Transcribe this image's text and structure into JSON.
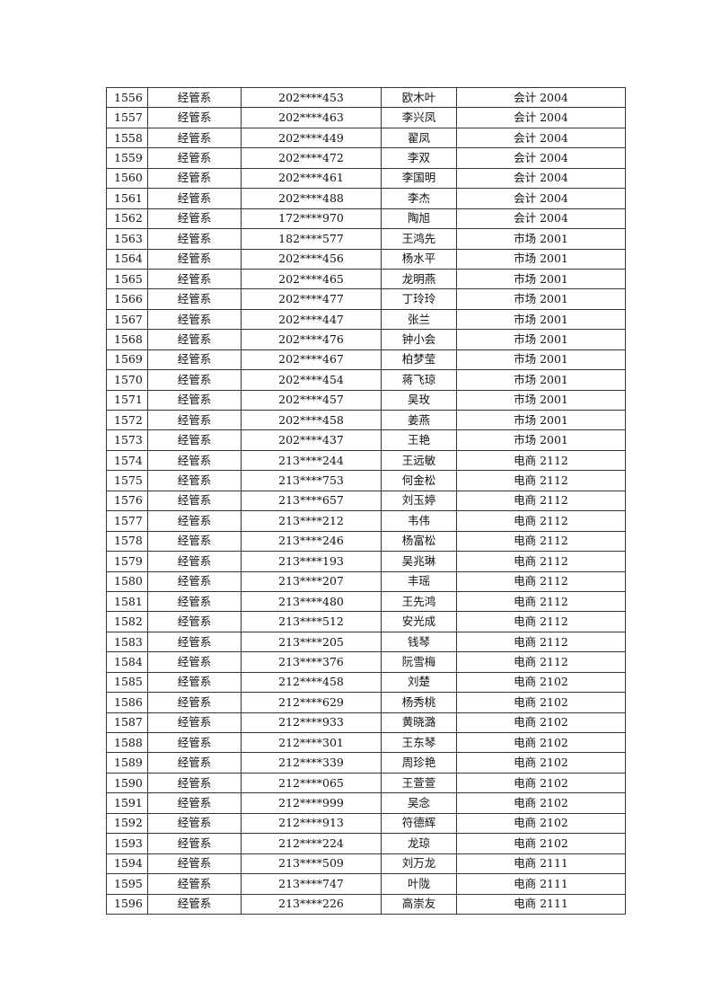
{
  "table": {
    "rows": [
      [
        "1556",
        "经管系",
        "202****453",
        "欧木叶",
        "会计 2004"
      ],
      [
        "1557",
        "经管系",
        "202****463",
        "李兴凤",
        "会计 2004"
      ],
      [
        "1558",
        "经管系",
        "202****449",
        "翟凤",
        "会计 2004"
      ],
      [
        "1559",
        "经管系",
        "202****472",
        "李双",
        "会计 2004"
      ],
      [
        "1560",
        "经管系",
        "202****461",
        "李国明",
        "会计 2004"
      ],
      [
        "1561",
        "经管系",
        "202****488",
        "李杰",
        "会计 2004"
      ],
      [
        "1562",
        "经管系",
        "172****970",
        "陶旭",
        "会计 2004"
      ],
      [
        "1563",
        "经管系",
        "182****577",
        "王鸿先",
        "市场 2001"
      ],
      [
        "1564",
        "经管系",
        "202****456",
        "杨水平",
        "市场 2001"
      ],
      [
        "1565",
        "经管系",
        "202****465",
        "龙明燕",
        "市场 2001"
      ],
      [
        "1566",
        "经管系",
        "202****477",
        "丁玲玲",
        "市场 2001"
      ],
      [
        "1567",
        "经管系",
        "202****447",
        "张兰",
        "市场 2001"
      ],
      [
        "1568",
        "经管系",
        "202****476",
        "钟小会",
        "市场 2001"
      ],
      [
        "1569",
        "经管系",
        "202****467",
        "柏梦莹",
        "市场 2001"
      ],
      [
        "1570",
        "经管系",
        "202****454",
        "蒋飞琼",
        "市场 2001"
      ],
      [
        "1571",
        "经管系",
        "202****457",
        "吴玫",
        "市场 2001"
      ],
      [
        "1572",
        "经管系",
        "202****458",
        "姜燕",
        "市场 2001"
      ],
      [
        "1573",
        "经管系",
        "202****437",
        "王艳",
        "市场 2001"
      ],
      [
        "1574",
        "经管系",
        "213****244",
        "王远敏",
        "电商 2112"
      ],
      [
        "1575",
        "经管系",
        "213****753",
        "何金松",
        "电商 2112"
      ],
      [
        "1576",
        "经管系",
        "213****657",
        "刘玉婷",
        "电商 2112"
      ],
      [
        "1577",
        "经管系",
        "213****212",
        "韦伟",
        "电商 2112"
      ],
      [
        "1578",
        "经管系",
        "213****246",
        "杨富松",
        "电商 2112"
      ],
      [
        "1579",
        "经管系",
        "213****193",
        "吴兆琳",
        "电商 2112"
      ],
      [
        "1580",
        "经管系",
        "213****207",
        "丰瑶",
        "电商 2112"
      ],
      [
        "1581",
        "经管系",
        "213****480",
        "王先鸿",
        "电商 2112"
      ],
      [
        "1582",
        "经管系",
        "213****512",
        "安光成",
        "电商 2112"
      ],
      [
        "1583",
        "经管系",
        "213****205",
        "钱琴",
        "电商 2112"
      ],
      [
        "1584",
        "经管系",
        "213****376",
        "阮雪梅",
        "电商 2112"
      ],
      [
        "1585",
        "经管系",
        "212****458",
        "刘楚",
        "电商 2102"
      ],
      [
        "1586",
        "经管系",
        "212****629",
        "杨秀桃",
        "电商 2102"
      ],
      [
        "1587",
        "经管系",
        "212****933",
        "黄晓潞",
        "电商 2102"
      ],
      [
        "1588",
        "经管系",
        "212****301",
        "王东琴",
        "电商 2102"
      ],
      [
        "1589",
        "经管系",
        "212****339",
        "周珍艳",
        "电商 2102"
      ],
      [
        "1590",
        "经管系",
        "212****065",
        "王萱萱",
        "电商 2102"
      ],
      [
        "1591",
        "经管系",
        "212****999",
        "吴念",
        "电商 2102"
      ],
      [
        "1592",
        "经管系",
        "212****913",
        "符德辉",
        "电商 2102"
      ],
      [
        "1593",
        "经管系",
        "212****224",
        "龙琼",
        "电商 2102"
      ],
      [
        "1594",
        "经管系",
        "213****509",
        "刘万龙",
        "电商 2111"
      ],
      [
        "1595",
        "经管系",
        "213****747",
        "叶陇",
        "电商 2111"
      ],
      [
        "1596",
        "经管系",
        "213****226",
        "高崇友",
        "电商 2111"
      ]
    ]
  }
}
